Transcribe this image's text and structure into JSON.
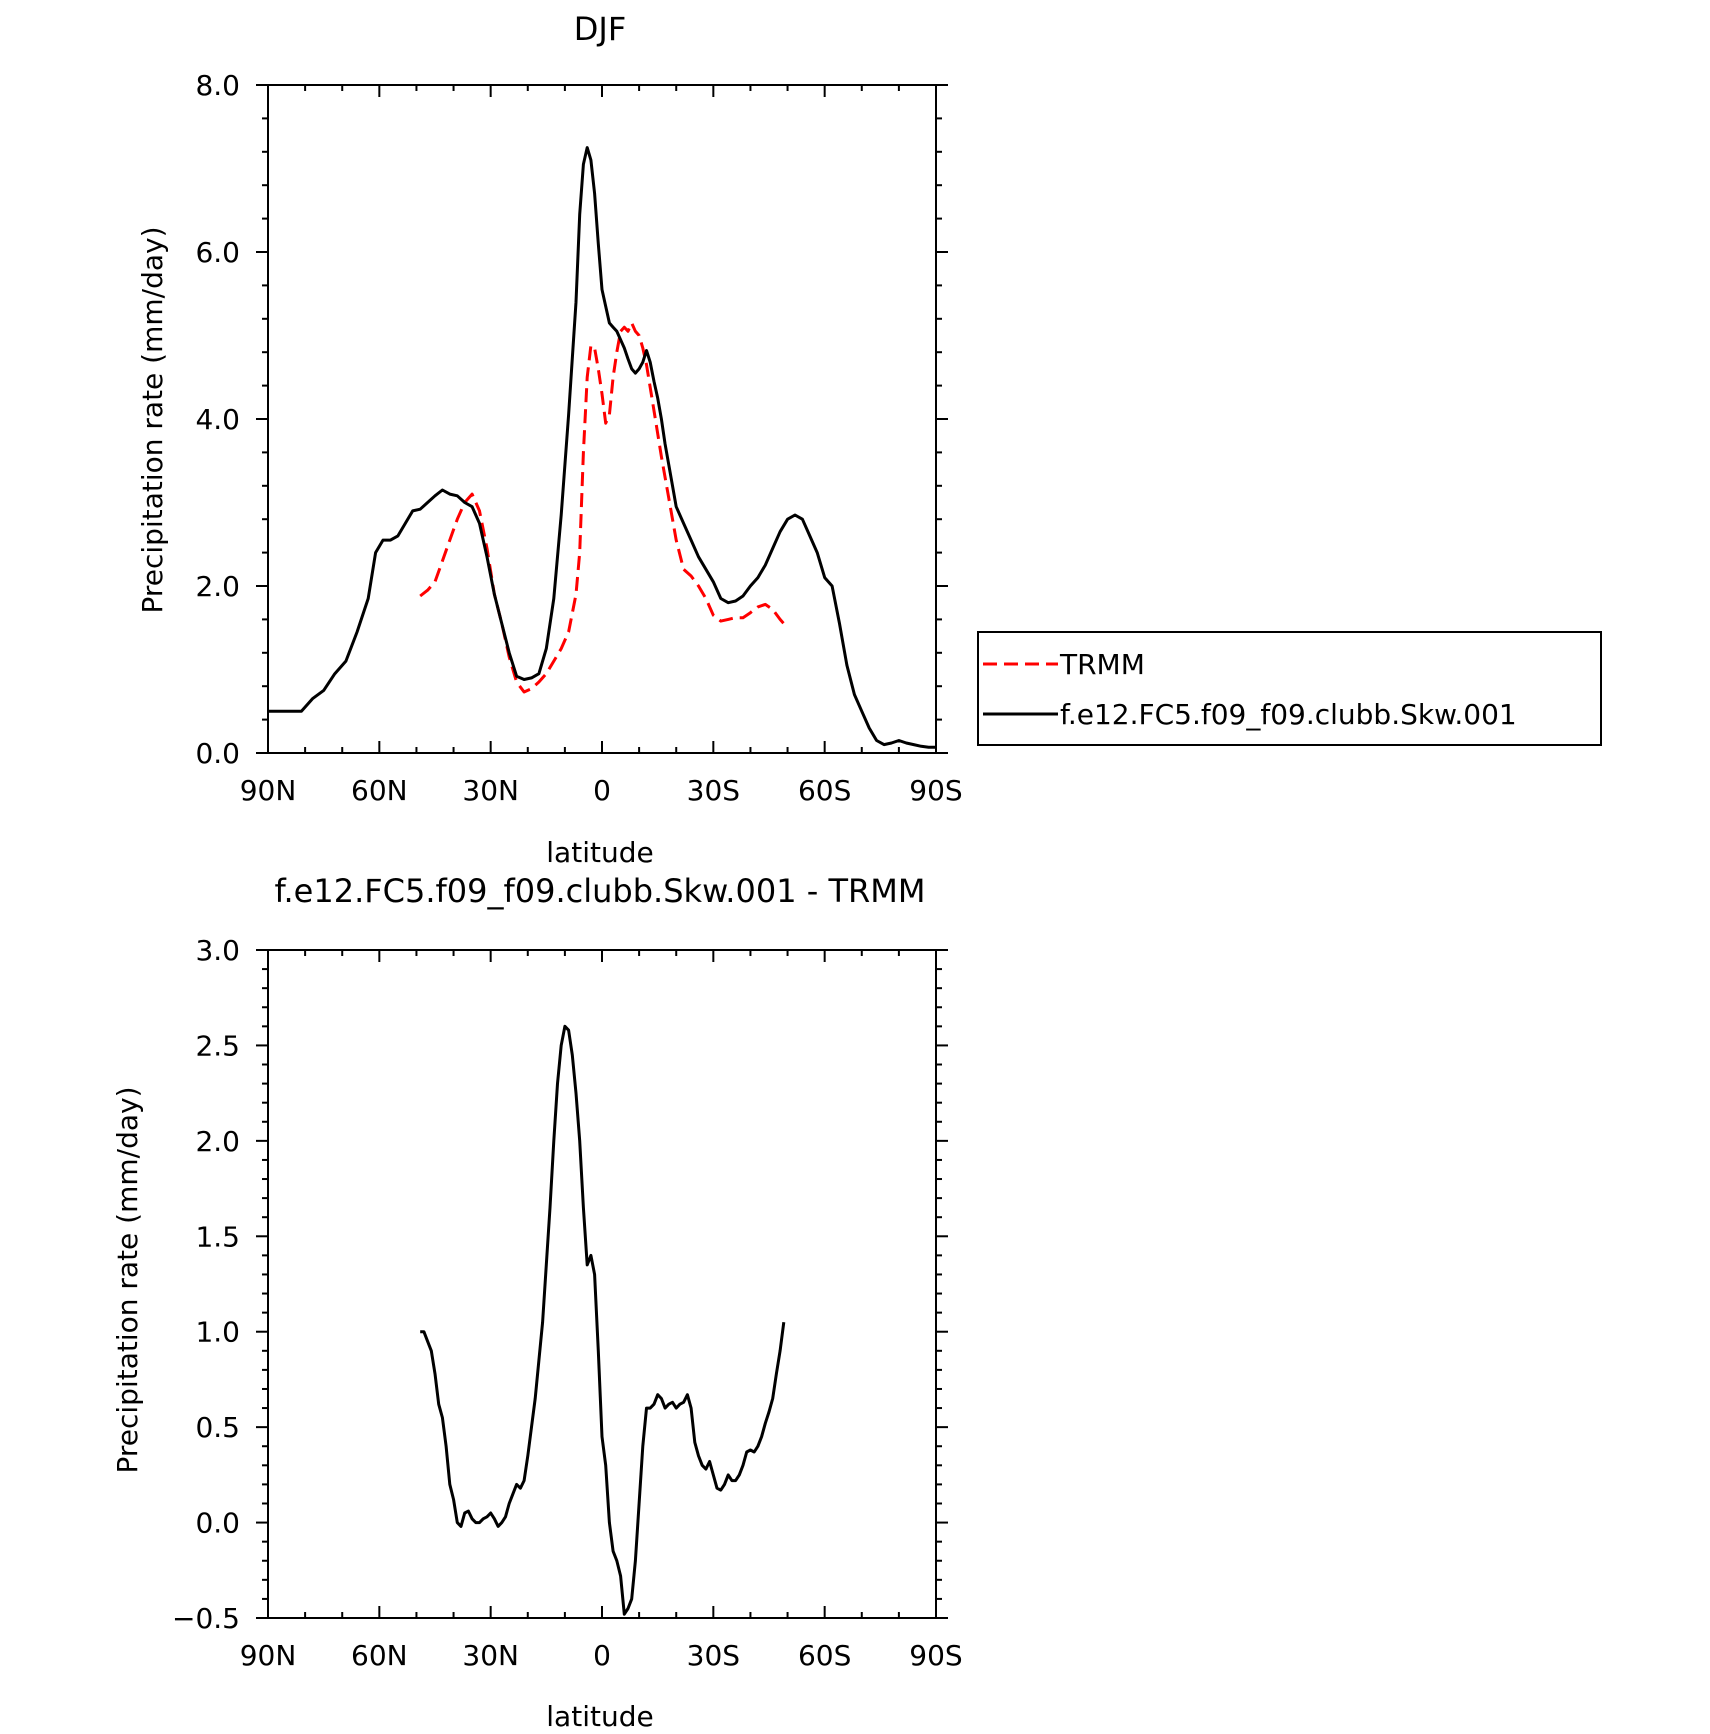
{
  "chart_data": [
    {
      "type": "line",
      "title": "DJF",
      "xlabel": "latitude",
      "ylabel": "Precipitation rate (mm/day)",
      "xlim": [
        90,
        -90
      ],
      "ylim": [
        0,
        8
      ],
      "xticks": [
        90,
        60,
        30,
        0,
        -30,
        -60,
        -90
      ],
      "xtick_labels": [
        "90N",
        "60N",
        "30N",
        "0",
        "30S",
        "60S",
        "90S"
      ],
      "yticks": [
        0,
        2,
        4,
        6,
        8
      ],
      "ytick_labels": [
        "0.0",
        "2.0",
        "4.0",
        "6.0",
        "8.0"
      ],
      "legend_position": "right",
      "series": [
        {
          "name": "TRMM",
          "color": "#ff0000",
          "dash": "dashed",
          "x": [
            49,
            47,
            45,
            43,
            41,
            39,
            37,
            35,
            33,
            31,
            29,
            27,
            25,
            23,
            21,
            19,
            17,
            15,
            13,
            11,
            9,
            7,
            6,
            5,
            4,
            3,
            2,
            1,
            0,
            -1,
            -2,
            -3,
            -4,
            -5,
            -6,
            -7,
            -8,
            -9,
            -10,
            -11,
            -12,
            -14,
            -16,
            -18,
            -20,
            -22,
            -24,
            -26,
            -28,
            -30,
            -32,
            -34,
            -36,
            -38,
            -40,
            -42,
            -44,
            -46,
            -48,
            -49
          ],
          "values": [
            1.88,
            1.95,
            2.05,
            2.3,
            2.55,
            2.8,
            3.0,
            3.1,
            2.9,
            2.45,
            1.9,
            1.55,
            1.15,
            0.85,
            0.73,
            0.77,
            0.85,
            0.95,
            1.1,
            1.25,
            1.45,
            1.9,
            2.4,
            3.6,
            4.5,
            4.88,
            4.85,
            4.6,
            4.3,
            3.95,
            4.05,
            4.5,
            4.8,
            5.05,
            5.1,
            5.05,
            5.15,
            5.05,
            5.0,
            4.85,
            4.65,
            4.1,
            3.55,
            3.05,
            2.55,
            2.2,
            2.12,
            2.0,
            1.85,
            1.65,
            1.58,
            1.6,
            1.62,
            1.62,
            1.68,
            1.75,
            1.78,
            1.72,
            1.6,
            1.55
          ]
        },
        {
          "name": "f.e12.FC5.f09_f09.clubb.Skw.001",
          "color": "#000000",
          "dash": "solid",
          "x": [
            90,
            87,
            84,
            81,
            78,
            75,
            72,
            69,
            66,
            63,
            61,
            59,
            57,
            55,
            53,
            51,
            49,
            47,
            45,
            43,
            41,
            39,
            37,
            35,
            33,
            31,
            29,
            27,
            25,
            23,
            21,
            19,
            17,
            15,
            13,
            11,
            9,
            7,
            6,
            5,
            4,
            3,
            2,
            1,
            0,
            -1,
            -2,
            -3,
            -4,
            -5,
            -6,
            -7,
            -8,
            -9,
            -10,
            -11,
            -12,
            -13,
            -14,
            -15,
            -16,
            -17,
            -18,
            -19,
            -20,
            -22,
            -24,
            -26,
            -28,
            -30,
            -32,
            -34,
            -36,
            -38,
            -40,
            -42,
            -44,
            -46,
            -48,
            -50,
            -52,
            -54,
            -56,
            -58,
            -60,
            -62,
            -64,
            -66,
            -68,
            -70,
            -72,
            -74,
            -76,
            -78,
            -80,
            -82,
            -84,
            -86,
            -88,
            -90
          ],
          "values": [
            0.5,
            0.5,
            0.5,
            0.5,
            0.65,
            0.75,
            0.95,
            1.1,
            1.45,
            1.85,
            2.4,
            2.55,
            2.55,
            2.6,
            2.75,
            2.9,
            2.92,
            3.0,
            3.08,
            3.15,
            3.1,
            3.08,
            3.0,
            2.95,
            2.75,
            2.35,
            1.9,
            1.55,
            1.2,
            0.92,
            0.88,
            0.9,
            0.95,
            1.25,
            1.85,
            2.85,
            4.05,
            5.4,
            6.45,
            7.05,
            7.25,
            7.1,
            6.7,
            6.1,
            5.55,
            5.35,
            5.15,
            5.1,
            5.05,
            4.95,
            4.85,
            4.72,
            4.6,
            4.55,
            4.6,
            4.68,
            4.82,
            4.68,
            4.45,
            4.25,
            4.0,
            3.7,
            3.45,
            3.2,
            2.95,
            2.75,
            2.55,
            2.35,
            2.2,
            2.05,
            1.85,
            1.8,
            1.82,
            1.88,
            2.0,
            2.1,
            2.25,
            2.45,
            2.65,
            2.8,
            2.85,
            2.8,
            2.6,
            2.4,
            2.1,
            2.0,
            1.55,
            1.05,
            0.7,
            0.5,
            0.3,
            0.15,
            0.1,
            0.12,
            0.15,
            0.12,
            0.1,
            0.08,
            0.07,
            0.07
          ]
        }
      ]
    },
    {
      "type": "line",
      "title": "f.e12.FC5.f09_f09.clubb.Skw.001 - TRMM",
      "xlabel": "latitude",
      "ylabel": "Precipitation rate (mm/day)",
      "xlim": [
        90,
        -90
      ],
      "ylim": [
        -0.5,
        3.0
      ],
      "xticks": [
        90,
        60,
        30,
        0,
        -30,
        -60,
        -90
      ],
      "xtick_labels": [
        "90N",
        "60N",
        "30N",
        "0",
        "30S",
        "60S",
        "90S"
      ],
      "yticks": [
        -0.5,
        0.0,
        0.5,
        1.0,
        1.5,
        2.0,
        2.5,
        3.0
      ],
      "ytick_labels": [
        "−0.5",
        "0.0",
        "0.5",
        "1.0",
        "1.5",
        "2.0",
        "2.5",
        "3.0"
      ],
      "series": [
        {
          "name": "",
          "color": "#000000",
          "dash": "solid",
          "x": [
            49,
            48,
            47,
            46,
            45,
            44,
            43,
            42,
            41,
            40,
            39,
            38,
            37,
            36,
            35,
            34,
            33,
            32,
            31,
            30,
            29,
            28,
            27,
            26,
            25,
            24,
            23,
            22,
            21,
            20,
            19,
            18,
            17,
            16,
            15,
            14,
            13,
            12,
            11,
            10,
            9,
            8,
            7,
            6,
            5,
            4,
            3,
            2,
            1,
            0,
            -1,
            -2,
            -3,
            -4,
            -5,
            -6,
            -7,
            -8,
            -9,
            -10,
            -11,
            -12,
            -13,
            -14,
            -15,
            -16,
            -17,
            -18,
            -19,
            -20,
            -21,
            -22,
            -23,
            -24,
            -25,
            -26,
            -27,
            -28,
            -29,
            -30,
            -31,
            -32,
            -33,
            -34,
            -35,
            -36,
            -37,
            -38,
            -39,
            -40,
            -41,
            -42,
            -43,
            -44,
            -45,
            -46,
            -47,
            -48,
            -49
          ],
          "values": [
            1.0,
            1.0,
            0.95,
            0.9,
            0.78,
            0.62,
            0.55,
            0.4,
            0.2,
            0.12,
            0.0,
            -0.02,
            0.05,
            0.06,
            0.02,
            0.0,
            0.0,
            0.02,
            0.03,
            0.05,
            0.02,
            -0.02,
            0.0,
            0.03,
            0.1,
            0.15,
            0.2,
            0.18,
            0.22,
            0.35,
            0.5,
            0.65,
            0.85,
            1.05,
            1.35,
            1.65,
            2.0,
            2.3,
            2.5,
            2.6,
            2.58,
            2.45,
            2.25,
            2.0,
            1.65,
            1.35,
            1.4,
            1.3,
            0.9,
            0.45,
            0.3,
            0.0,
            -0.15,
            -0.2,
            -0.28,
            -0.48,
            -0.45,
            -0.4,
            -0.2,
            0.1,
            0.4,
            0.6,
            0.6,
            0.62,
            0.67,
            0.65,
            0.6,
            0.62,
            0.63,
            0.6,
            0.62,
            0.63,
            0.67,
            0.6,
            0.42,
            0.35,
            0.3,
            0.28,
            0.32,
            0.25,
            0.18,
            0.17,
            0.2,
            0.25,
            0.22,
            0.22,
            0.25,
            0.3,
            0.37,
            0.38,
            0.37,
            0.4,
            0.45,
            0.52,
            0.58,
            0.65,
            0.78,
            0.9,
            1.05
          ]
        }
      ]
    }
  ]
}
